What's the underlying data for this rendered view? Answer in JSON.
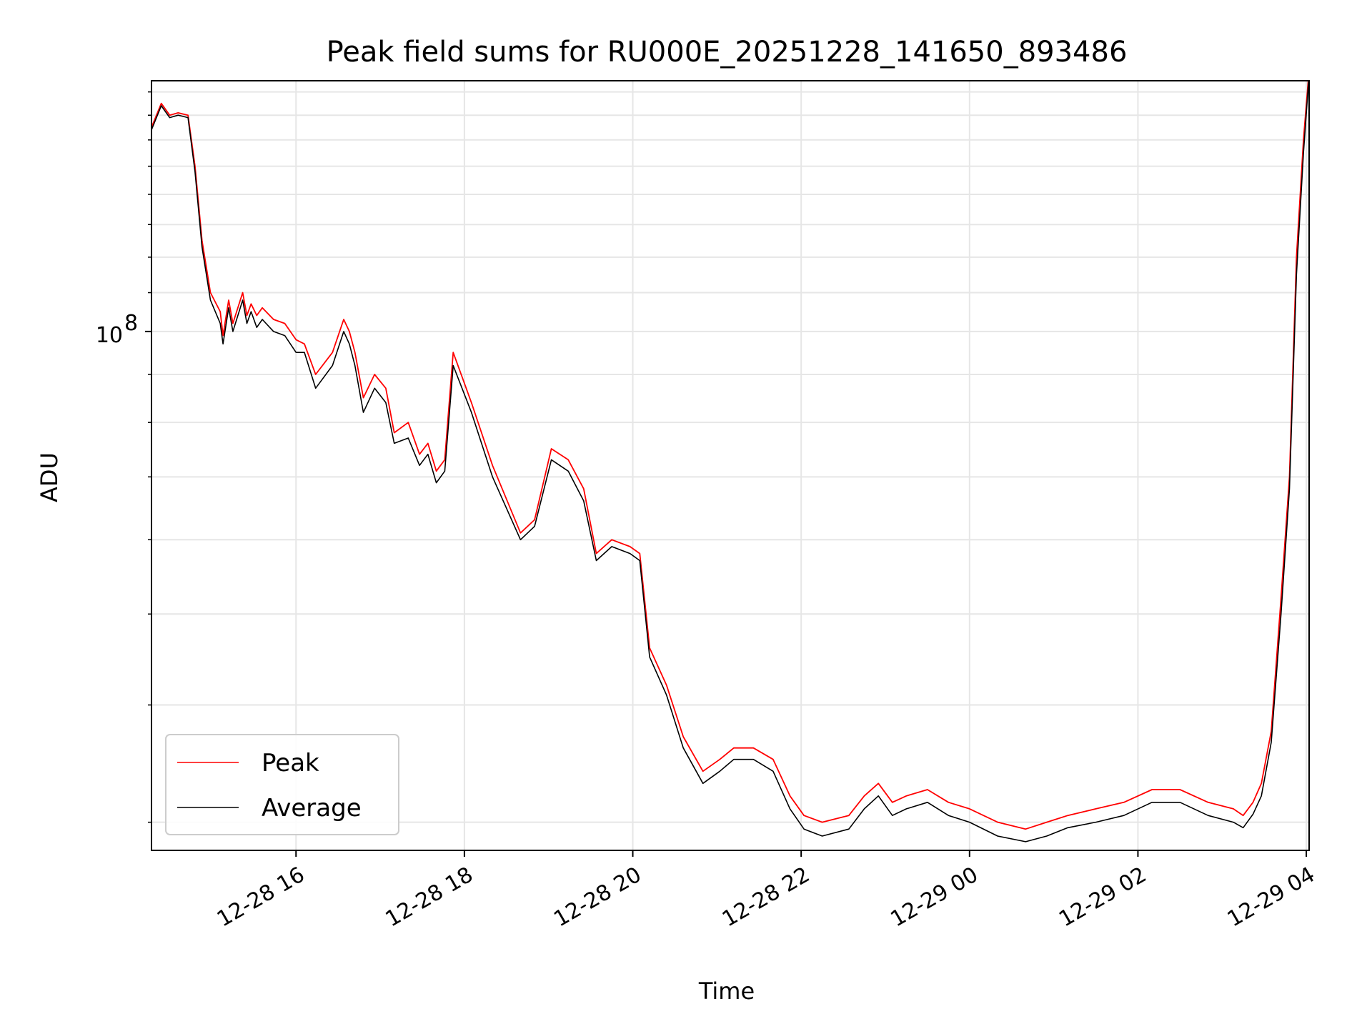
{
  "chart_data": {
    "type": "line",
    "title": "Peak field sums for RU000E_20251228_141650_893486",
    "xlabel": "Time",
    "ylabel": "ADU",
    "x_axis": {
      "kind": "time",
      "range": [
        "2025-12-28 14:17",
        "2025-12-29 04:02"
      ],
      "ticks": [
        "2025-12-28 16:00",
        "2025-12-28 18:00",
        "2025-12-28 20:00",
        "2025-12-28 22:00",
        "2025-12-29 00:00",
        "2025-12-29 02:00",
        "2025-12-29 04:00"
      ],
      "tick_labels": [
        "12-28 16",
        "12-28 18",
        "12-28 20",
        "12-28 22",
        "12-29 00",
        "12-29 02",
        "12-29 04"
      ],
      "tick_label_rotation_deg": 30
    },
    "y_axis": {
      "scale": "log",
      "range": [
        28000000,
        185000000
      ],
      "major_ticks": [
        100000000
      ],
      "major_tick_labels": [
        "10",
        "8"
      ],
      "minor_ticks": [
        30000000,
        40000000,
        50000000,
        60000000,
        70000000,
        80000000,
        90000000,
        110000000,
        120000000,
        130000000,
        140000000,
        150000000,
        160000000,
        170000000,
        180000000
      ]
    },
    "grid": true,
    "legend": {
      "placement": "lower-left",
      "entries": [
        "Peak",
        "Average"
      ]
    },
    "series": [
      {
        "name": "Peak",
        "color": "#ff0000",
        "x": [
          "2025-12-28 14:17",
          "2025-12-28 14:24",
          "2025-12-28 14:30",
          "2025-12-28 14:36",
          "2025-12-28 14:43",
          "2025-12-28 14:48",
          "2025-12-28 14:53",
          "2025-12-28 14:59",
          "2025-12-28 15:06",
          "2025-12-28 15:08",
          "2025-12-28 15:12",
          "2025-12-28 15:15",
          "2025-12-28 15:22",
          "2025-12-28 15:25",
          "2025-12-28 15:28",
          "2025-12-28 15:32",
          "2025-12-28 15:36",
          "2025-12-28 15:44",
          "2025-12-28 15:52",
          "2025-12-28 16:00",
          "2025-12-28 16:06",
          "2025-12-28 16:14",
          "2025-12-28 16:26",
          "2025-12-28 16:34",
          "2025-12-28 16:38",
          "2025-12-28 16:42",
          "2025-12-28 16:48",
          "2025-12-28 16:56",
          "2025-12-28 17:04",
          "2025-12-28 17:10",
          "2025-12-28 17:20",
          "2025-12-28 17:28",
          "2025-12-28 17:34",
          "2025-12-28 17:40",
          "2025-12-28 17:46",
          "2025-12-28 17:52",
          "2025-12-28 18:05",
          "2025-12-28 18:20",
          "2025-12-28 18:40",
          "2025-12-28 18:50",
          "2025-12-28 19:02",
          "2025-12-28 19:14",
          "2025-12-28 19:25",
          "2025-12-28 19:34",
          "2025-12-28 19:45",
          "2025-12-28 19:58",
          "2025-12-28 20:05",
          "2025-12-28 20:12",
          "2025-12-28 20:24",
          "2025-12-28 20:36",
          "2025-12-28 20:50",
          "2025-12-28 21:02",
          "2025-12-28 21:12",
          "2025-12-28 21:26",
          "2025-12-28 21:40",
          "2025-12-28 21:52",
          "2025-12-28 22:02",
          "2025-12-28 22:15",
          "2025-12-28 22:34",
          "2025-12-28 22:45",
          "2025-12-28 22:55",
          "2025-12-28 23:05",
          "2025-12-28 23:15",
          "2025-12-28 23:30",
          "2025-12-28 23:45",
          "2025-12-29 00:00",
          "2025-12-29 00:20",
          "2025-12-29 00:40",
          "2025-12-29 00:55",
          "2025-12-29 01:10",
          "2025-12-29 01:30",
          "2025-12-29 01:50",
          "2025-12-29 02:10",
          "2025-12-29 02:30",
          "2025-12-29 02:50",
          "2025-12-29 03:08",
          "2025-12-29 03:15",
          "2025-12-29 03:22",
          "2025-12-29 03:28",
          "2025-12-29 03:35",
          "2025-12-29 03:42",
          "2025-12-29 03:48",
          "2025-12-29 03:53",
          "2025-12-29 03:58",
          "2025-12-29 04:02"
        ],
        "y": [
          165000000,
          175000000,
          170000000,
          171000000,
          170000000,
          150000000,
          125000000,
          110000000,
          105000000,
          99000000,
          108000000,
          102000000,
          110000000,
          104000000,
          107000000,
          104000000,
          106000000,
          103000000,
          102000000,
          98000000,
          97000000,
          90000000,
          95000000,
          103000000,
          100000000,
          95000000,
          85000000,
          90000000,
          87000000,
          78000000,
          80000000,
          74000000,
          76000000,
          71000000,
          73000000,
          95000000,
          84000000,
          72000000,
          61000000,
          63000000,
          75000000,
          73000000,
          68000000,
          58000000,
          60000000,
          59000000,
          58000000,
          46000000,
          42000000,
          37000000,
          34000000,
          35000000,
          36000000,
          36000000,
          35000000,
          32000000,
          30500000,
          30000000,
          30500000,
          32000000,
          33000000,
          31500000,
          32000000,
          32500000,
          31500000,
          31000000,
          30000000,
          29500000,
          30000000,
          30500000,
          31000000,
          31500000,
          32500000,
          32500000,
          31500000,
          31000000,
          30500000,
          31500000,
          33000000,
          37500000,
          52000000,
          70000000,
          120000000,
          160000000,
          190000000
        ]
      },
      {
        "name": "Average",
        "color": "#000000",
        "x": [
          "2025-12-28 14:17",
          "2025-12-28 14:24",
          "2025-12-28 14:30",
          "2025-12-28 14:36",
          "2025-12-28 14:43",
          "2025-12-28 14:48",
          "2025-12-28 14:53",
          "2025-12-28 14:59",
          "2025-12-28 15:06",
          "2025-12-28 15:08",
          "2025-12-28 15:12",
          "2025-12-28 15:15",
          "2025-12-28 15:22",
          "2025-12-28 15:25",
          "2025-12-28 15:28",
          "2025-12-28 15:32",
          "2025-12-28 15:36",
          "2025-12-28 15:44",
          "2025-12-28 15:52",
          "2025-12-28 16:00",
          "2025-12-28 16:06",
          "2025-12-28 16:14",
          "2025-12-28 16:26",
          "2025-12-28 16:34",
          "2025-12-28 16:38",
          "2025-12-28 16:42",
          "2025-12-28 16:48",
          "2025-12-28 16:56",
          "2025-12-28 17:04",
          "2025-12-28 17:10",
          "2025-12-28 17:20",
          "2025-12-28 17:28",
          "2025-12-28 17:34",
          "2025-12-28 17:40",
          "2025-12-28 17:46",
          "2025-12-28 17:52",
          "2025-12-28 18:05",
          "2025-12-28 18:20",
          "2025-12-28 18:40",
          "2025-12-28 18:50",
          "2025-12-28 19:02",
          "2025-12-28 19:14",
          "2025-12-28 19:25",
          "2025-12-28 19:34",
          "2025-12-28 19:45",
          "2025-12-28 19:58",
          "2025-12-28 20:05",
          "2025-12-28 20:12",
          "2025-12-28 20:24",
          "2025-12-28 20:36",
          "2025-12-28 20:50",
          "2025-12-28 21:02",
          "2025-12-28 21:12",
          "2025-12-28 21:26",
          "2025-12-28 21:40",
          "2025-12-28 21:52",
          "2025-12-28 22:02",
          "2025-12-28 22:15",
          "2025-12-28 22:34",
          "2025-12-28 22:45",
          "2025-12-28 22:55",
          "2025-12-28 23:05",
          "2025-12-28 23:15",
          "2025-12-28 23:30",
          "2025-12-28 23:45",
          "2025-12-29 00:00",
          "2025-12-29 00:20",
          "2025-12-29 00:40",
          "2025-12-29 00:55",
          "2025-12-29 01:10",
          "2025-12-29 01:30",
          "2025-12-29 01:50",
          "2025-12-29 02:10",
          "2025-12-29 02:30",
          "2025-12-29 02:50",
          "2025-12-29 03:08",
          "2025-12-29 03:15",
          "2025-12-29 03:22",
          "2025-12-29 03:28",
          "2025-12-29 03:35",
          "2025-12-29 03:42",
          "2025-12-29 03:48",
          "2025-12-29 03:53",
          "2025-12-29 03:58",
          "2025-12-29 04:02"
        ],
        "y": [
          164000000,
          174000000,
          169000000,
          170000000,
          169000000,
          148000000,
          123000000,
          108000000,
          102000000,
          97000000,
          106000000,
          100000000,
          108000000,
          102000000,
          105000000,
          101000000,
          103000000,
          100000000,
          99000000,
          95000000,
          95000000,
          87000000,
          92000000,
          100000000,
          97000000,
          92000000,
          82000000,
          87000000,
          84000000,
          76000000,
          77000000,
          72000000,
          74000000,
          69000000,
          71000000,
          92000000,
          82000000,
          70000000,
          60000000,
          62000000,
          73000000,
          71000000,
          66000000,
          57000000,
          59000000,
          58000000,
          57000000,
          45000000,
          41000000,
          36000000,
          33000000,
          34000000,
          35000000,
          35000000,
          34000000,
          31000000,
          29500000,
          29000000,
          29500000,
          31000000,
          32000000,
          30500000,
          31000000,
          31500000,
          30500000,
          30000000,
          29000000,
          28600000,
          29000000,
          29600000,
          30000000,
          30500000,
          31500000,
          31500000,
          30500000,
          30000000,
          29600000,
          30600000,
          32000000,
          36500000,
          50000000,
          68000000,
          115000000,
          155000000,
          188000000
        ]
      }
    ]
  }
}
